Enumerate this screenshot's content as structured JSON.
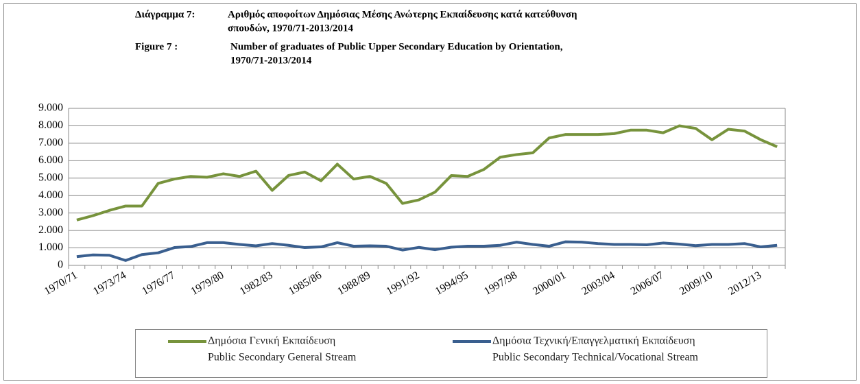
{
  "chart_data": {
    "type": "line",
    "title_greek_label": "Διάγραμμα 7:",
    "title_greek_lines": [
      "Αριθμός αποφοίτων Δημόσιας Μέσης Ανώτερης Εκπαίδευσης κατά κατεύθυνση",
      "σπουδών, 1970/71-2013/2014"
    ],
    "title_english_label": "Figure 7 :",
    "title_english_lines": [
      "Number of graduates of Public Upper Secondary Education by Orientation,",
      "1970/71-2013/2014"
    ],
    "categories": [
      "1970/71",
      null,
      null,
      "1973/74",
      null,
      null,
      "1976/77",
      null,
      null,
      "1979/80",
      null,
      null,
      "1982/83",
      null,
      null,
      "1985/86",
      null,
      null,
      "1988/89",
      null,
      null,
      "1991/92",
      null,
      null,
      "1994/95",
      null,
      null,
      "1997/98",
      null,
      null,
      "2000/01",
      null,
      null,
      "2003/04",
      null,
      null,
      "2006/07",
      null,
      null,
      "2009/10",
      null,
      null,
      "2012/13",
      null
    ],
    "series": [
      {
        "name": "Δημόσια Γενική Εκπαίδευση",
        "name_en": "Public Secondary General Stream",
        "color": "#77933c",
        "values": [
          2600,
          2850,
          3150,
          3400,
          3400,
          4700,
          4950,
          5100,
          5050,
          5250,
          5100,
          5400,
          4300,
          5150,
          5350,
          4850,
          5800,
          4950,
          5100,
          4700,
          3550,
          3750,
          4200,
          5150,
          5100,
          5500,
          6200,
          6350,
          6450,
          7300,
          7500,
          7500,
          7500,
          7550,
          7750,
          7750,
          7600,
          8000,
          7850,
          7200,
          7800,
          7700,
          7200,
          6800
        ]
      },
      {
        "name": "Δημόσια Τεχνική/Επαγγελματική Εκπαίδευση",
        "name_en": "Public Secondary Technical/Vocational Stream",
        "color": "#3a5f8f",
        "values": [
          500,
          600,
          580,
          280,
          620,
          720,
          1020,
          1080,
          1300,
          1300,
          1200,
          1120,
          1250,
          1150,
          1020,
          1060,
          1300,
          1100,
          1120,
          1100,
          880,
          1030,
          900,
          1040,
          1100,
          1100,
          1150,
          1330,
          1200,
          1100,
          1350,
          1330,
          1250,
          1200,
          1200,
          1180,
          1280,
          1220,
          1130,
          1200,
          1200,
          1250,
          1060,
          1150
        ]
      }
    ],
    "ylim": [
      0,
      9000
    ],
    "yticks": [
      0,
      {
        "value": 1000,
        "label": "1.000"
      },
      {
        "value": 2000,
        "label": "2.000"
      },
      {
        "value": 3000,
        "label": "3.000"
      },
      {
        "value": 4000,
        "label": "4.000"
      },
      {
        "value": 5000,
        "label": "5.000"
      },
      {
        "value": 6000,
        "label": "6.000"
      },
      {
        "value": 7000,
        "label": "7.000"
      },
      {
        "value": 8000,
        "label": "8.000"
      },
      {
        "value": 9000,
        "label": "9.000"
      }
    ],
    "grid": true
  }
}
